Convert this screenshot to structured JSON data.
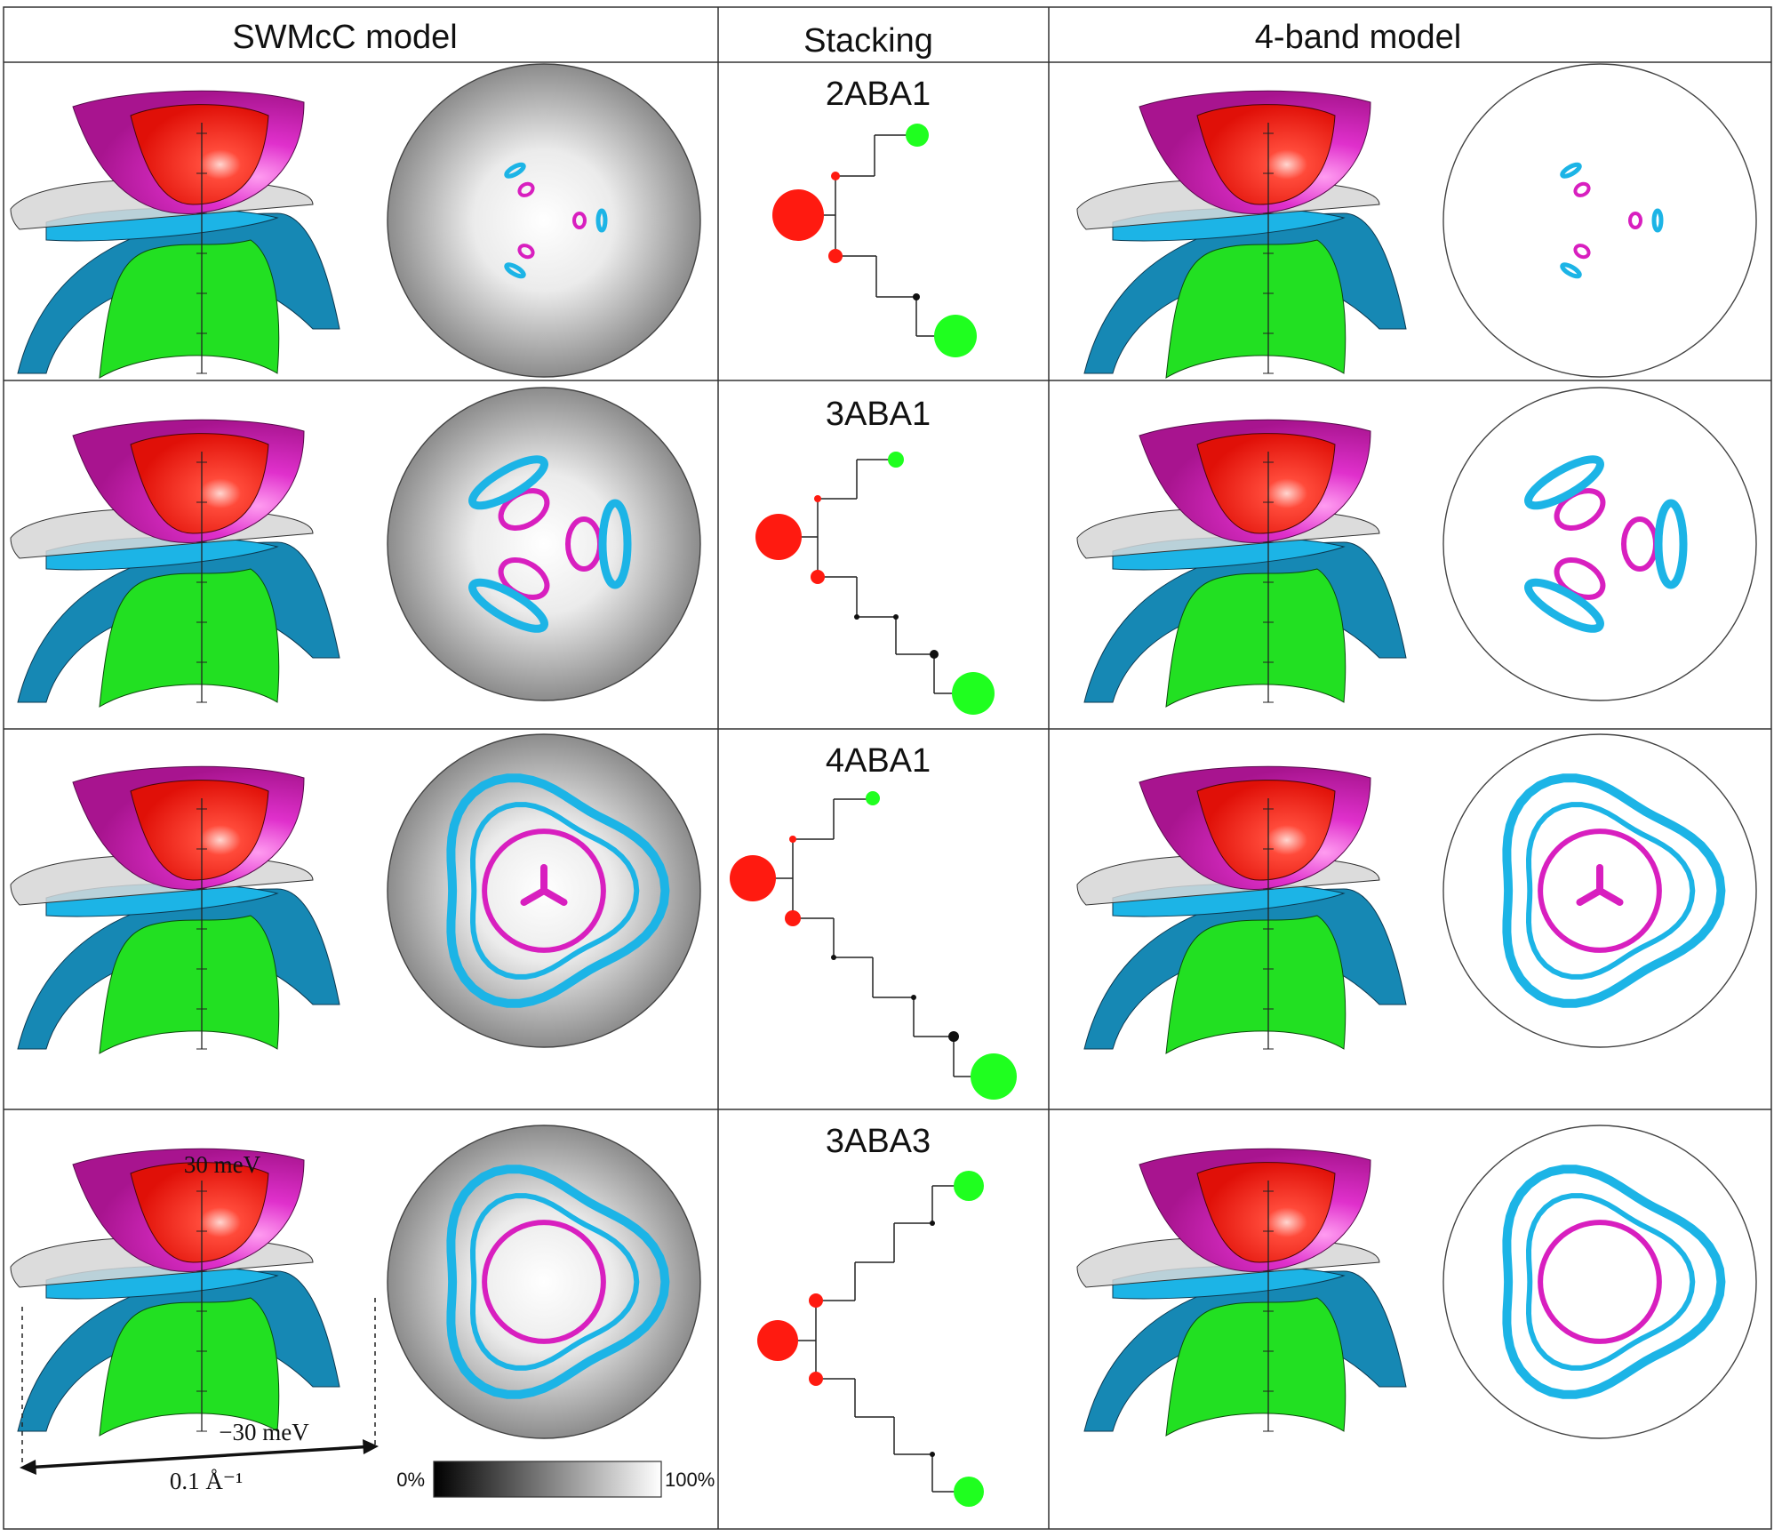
{
  "headers": {
    "left": "SWMcC model",
    "middle": "Stacking",
    "right": "4-band model"
  },
  "rows": [
    {
      "stacking": "2ABA1"
    },
    {
      "stacking": "3ABA1"
    },
    {
      "stacking": "4ABA1"
    },
    {
      "stacking": "3ABA3"
    }
  ],
  "annotations": {
    "energy_top": "30 meV",
    "energy_bottom": "−30 meV",
    "momentum": "0.1 Å⁻¹"
  },
  "colorbar": {
    "min_label": "0%",
    "max_label": "100%"
  },
  "colors": {
    "magenta": "#d81fbf",
    "red": "#ff1a10",
    "gray_plane": "#d6d6d6",
    "cyan": "#1cb4e6",
    "teal": "#1688b4",
    "green": "#22e022",
    "dot_red": "#ff1a10",
    "dot_green": "#1fff1f",
    "dot_black": "#111111"
  }
}
